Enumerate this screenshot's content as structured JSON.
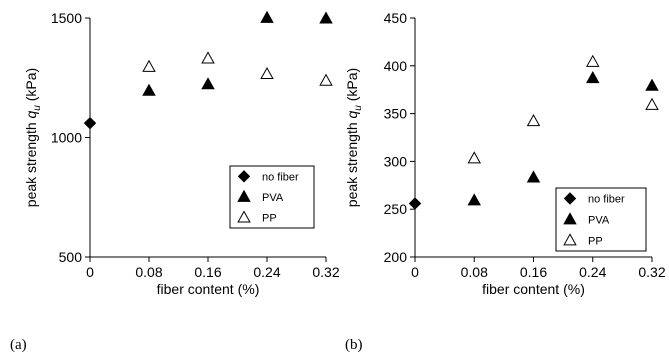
{
  "chart_data": [
    {
      "panel_label": "(a)",
      "type": "scatter",
      "xlabel": "fiber content (%)",
      "ylabel_prefix": "peak strength ",
      "ylabel_symbol": "q",
      "ylabel_sub": "u",
      "ylabel_unit": " (kPa)",
      "xlim": [
        0,
        0.32
      ],
      "ylim": [
        500,
        1500
      ],
      "xticks": [
        0,
        0.08,
        0.16,
        0.24,
        0.32
      ],
      "xtick_labels": [
        "0",
        "0.08",
        "0.16",
        "0.24",
        "0.32"
      ],
      "yticks": [
        500,
        1000,
        1500
      ],
      "ytick_labels": [
        "500",
        "1000",
        "1500"
      ],
      "legend_position": "lower-right",
      "series": [
        {
          "name": "no fiber",
          "marker": "diamond-filled",
          "x": [
            0
          ],
          "y": [
            1060
          ]
        },
        {
          "name": "PVA",
          "marker": "triangle-filled",
          "x": [
            0.08,
            0.16,
            0.24,
            0.32
          ],
          "y": [
            1195,
            1222,
            1500,
            1497
          ]
        },
        {
          "name": "PP",
          "marker": "triangle-open",
          "x": [
            0.08,
            0.16,
            0.24,
            0.32
          ],
          "y": [
            1295,
            1330,
            1265,
            1237
          ]
        }
      ]
    },
    {
      "panel_label": "(b)",
      "type": "scatter",
      "xlabel": "fiber content (%)",
      "ylabel_prefix": "peak strength ",
      "ylabel_symbol": "q",
      "ylabel_sub": "u",
      "ylabel_unit": " (kPa)",
      "xlim": [
        0,
        0.32
      ],
      "ylim": [
        200,
        450
      ],
      "xticks": [
        0,
        0.08,
        0.16,
        0.24,
        0.32
      ],
      "xtick_labels": [
        "0",
        "0.08",
        "0.16",
        "0.24",
        "0.32"
      ],
      "yticks": [
        200,
        250,
        300,
        350,
        400,
        450
      ],
      "ytick_labels": [
        "200",
        "250",
        "300",
        "350",
        "400",
        "450"
      ],
      "legend_position": "lower-right",
      "series": [
        {
          "name": "no fiber",
          "marker": "diamond-filled",
          "x": [
            0
          ],
          "y": [
            256
          ]
        },
        {
          "name": "PVA",
          "marker": "triangle-filled",
          "x": [
            0.08,
            0.16,
            0.24,
            0.32
          ],
          "y": [
            259,
            283,
            387,
            379
          ]
        },
        {
          "name": "PP",
          "marker": "triangle-open",
          "x": [
            0.08,
            0.16,
            0.24,
            0.32
          ],
          "y": [
            303,
            342,
            404,
            359
          ]
        }
      ]
    }
  ]
}
